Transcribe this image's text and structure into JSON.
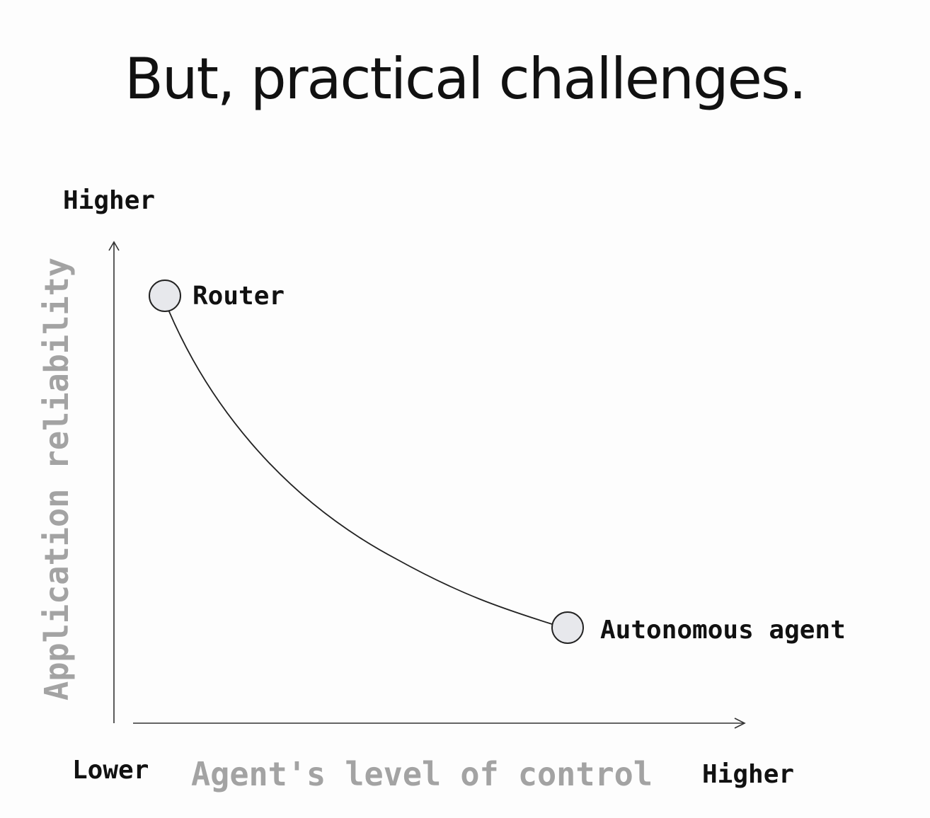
{
  "slide": {
    "title": "But, practical challenges."
  },
  "axes": {
    "y_label": "Application reliability",
    "y_top_label": "Higher",
    "x_label": "Agent's level of control",
    "x_left_label": "Lower",
    "x_right_label": "Higher"
  },
  "nodes": [
    {
      "label": "Router"
    },
    {
      "label": "Autonomous agent"
    }
  ],
  "colors": {
    "background": "#fdfdfd",
    "text": "#111111",
    "axis_label": "#a3a3a3",
    "node_fill": "#e7e8ec",
    "line": "#222222"
  }
}
